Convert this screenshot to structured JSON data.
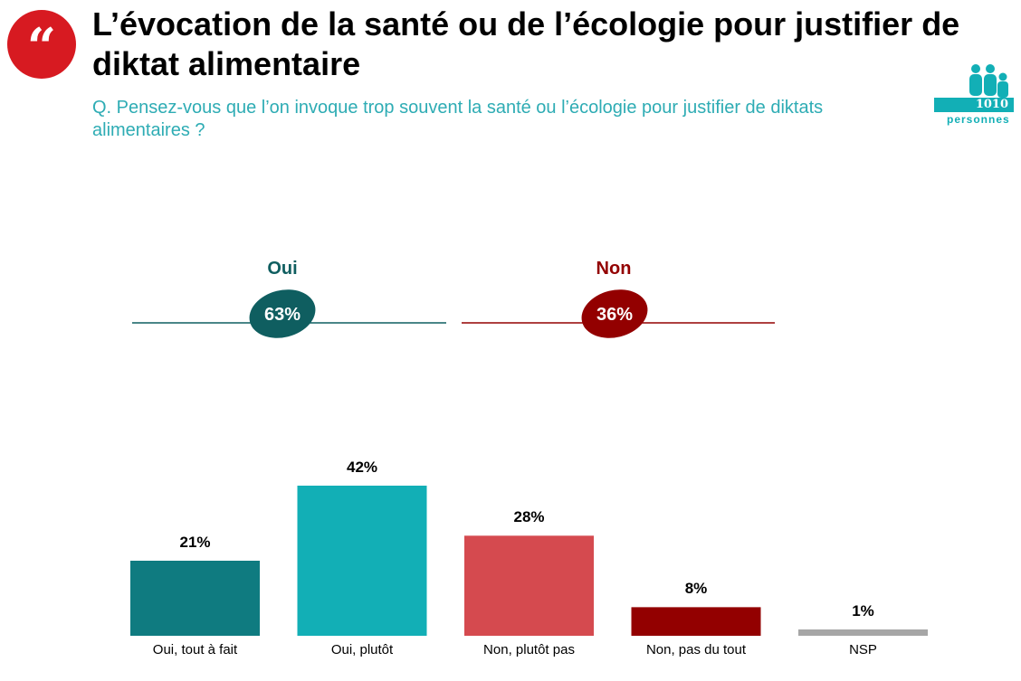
{
  "title": "L’évocation de la santé ou de l’écologie pour justifier de diktat alimentaire",
  "question": "Q. Pensez-vous que l’on invoque trop souvent la santé ou l’écologie pour justifier de diktats alimentaires ?",
  "sample": {
    "count": "1010",
    "label": "personnes"
  },
  "icons": {
    "quote": "quote-mark-icon",
    "people": "people-icon"
  },
  "summary": [
    {
      "label": "Oui",
      "value": "63%",
      "color": "#0f5e60"
    },
    {
      "label": "Non",
      "value": "36%",
      "color": "#930000"
    }
  ],
  "chart_data": {
    "type": "bar",
    "categories": [
      "Oui, tout à fait",
      "Oui, plutôt",
      "Non, plutôt pas",
      "Non, pas du tout",
      "NSP"
    ],
    "values": [
      21,
      42,
      28,
      8,
      1
    ],
    "value_labels": [
      "21%",
      "42%",
      "28%",
      "8%",
      "1%"
    ],
    "colors": [
      "#0f7b80",
      "#12afb6",
      "#d54a4f",
      "#930000",
      "#a6a6a6"
    ],
    "ylim": [
      0,
      42
    ],
    "grid": false
  }
}
